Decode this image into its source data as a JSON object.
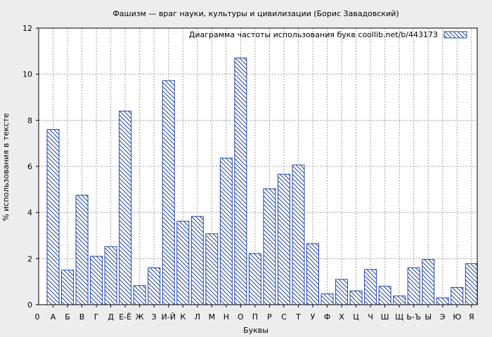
{
  "chart_data": {
    "type": "bar",
    "title": "Фашизм — враг науки, культуры и цивилизации (Борис Завадовский)",
    "xlabel": "Буквы",
    "ylabel": "% использования в тексте",
    "ylim": [
      0,
      12
    ],
    "yticks": [
      0,
      2,
      4,
      6,
      8,
      10,
      12
    ],
    "grid": true,
    "legend_position": "top-right",
    "axis_origin_label": "0",
    "categories": [
      "А",
      "Б",
      "В",
      "Г",
      "Д",
      "Е-Ё",
      "Ж",
      "З",
      "И-Й",
      "К",
      "Л",
      "М",
      "Н",
      "О",
      "П",
      "Р",
      "С",
      "Т",
      "У",
      "Ф",
      "Х",
      "Ц",
      "Ч",
      "Ш",
      "Щ",
      "Ь-Ъ",
      "Ы",
      "Э",
      "Ю",
      "Я"
    ],
    "series": [
      {
        "name": "Диаграмма частоты использования букв  coollib.net/b/443173",
        "values": [
          7.6,
          1.5,
          4.75,
          2.1,
          2.52,
          8.4,
          0.83,
          1.6,
          9.72,
          3.62,
          3.83,
          3.08,
          6.36,
          10.7,
          2.22,
          5.03,
          5.66,
          6.06,
          2.65,
          0.47,
          1.1,
          0.6,
          1.53,
          0.8,
          0.38,
          1.6,
          1.96,
          0.3,
          0.75,
          1.78
        ]
      }
    ],
    "colors": {
      "bar_stroke": "#2346a6",
      "background": "#ededed",
      "plot_background": "#ffffff",
      "grid": "#a0a0a0"
    }
  }
}
